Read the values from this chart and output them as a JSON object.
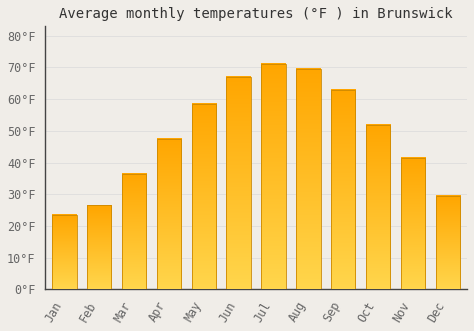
{
  "title": "Average monthly temperatures (°F ) in Brunswick",
  "months": [
    "Jan",
    "Feb",
    "Mar",
    "Apr",
    "May",
    "Jun",
    "Jul",
    "Aug",
    "Sep",
    "Oct",
    "Nov",
    "Dec"
  ],
  "values": [
    23.5,
    26.5,
    36.5,
    47.5,
    58.5,
    67.0,
    71.0,
    69.5,
    63.0,
    52.0,
    41.5,
    29.5
  ],
  "bar_color_top": "#FFB700",
  "bar_color_bottom": "#FFD060",
  "bar_edge_color": "#CC8800",
  "background_color": "#f0ede8",
  "grid_color": "#dddddd",
  "ylim": [
    0,
    83
  ],
  "yticks": [
    0,
    10,
    20,
    30,
    40,
    50,
    60,
    70,
    80
  ],
  "title_fontsize": 10,
  "tick_fontsize": 8.5,
  "bar_width": 0.7,
  "spine_color": "#444444"
}
